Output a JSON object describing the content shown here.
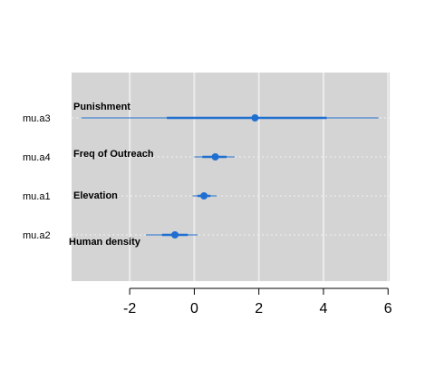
{
  "chart_data": {
    "type": "forest",
    "xlim": [
      -3.8,
      6.05
    ],
    "x_ticks": [
      -2,
      0,
      2,
      4,
      6
    ],
    "x_tick_labels": [
      "-2",
      "0",
      "2",
      "4",
      "6"
    ],
    "grid": true,
    "colors": {
      "panel": "#d4d4d4",
      "grid": "#ebebeb",
      "mark": "#1f6fd0",
      "row_line": "#f2f2f2"
    },
    "rows": [
      {
        "label": "mu.a3",
        "annotation": "Punishment",
        "estimate": 1.88,
        "inner": [
          -0.85,
          4.1
        ],
        "outer": [
          -3.5,
          5.7
        ]
      },
      {
        "label": "mu.a4",
        "annotation": "Freq of Outreach",
        "estimate": 0.65,
        "inner": [
          0.25,
          1.0
        ],
        "outer": [
          0.0,
          1.25
        ]
      },
      {
        "label": "mu.a1",
        "annotation": "Elevation",
        "estimate": 0.3,
        "inner": [
          0.1,
          0.5
        ],
        "outer": [
          -0.05,
          0.7
        ]
      },
      {
        "label": "mu.a2",
        "annotation": "Human density",
        "estimate": -0.6,
        "inner": [
          -1.0,
          -0.2
        ],
        "outer": [
          -1.5,
          0.1
        ]
      }
    ]
  }
}
